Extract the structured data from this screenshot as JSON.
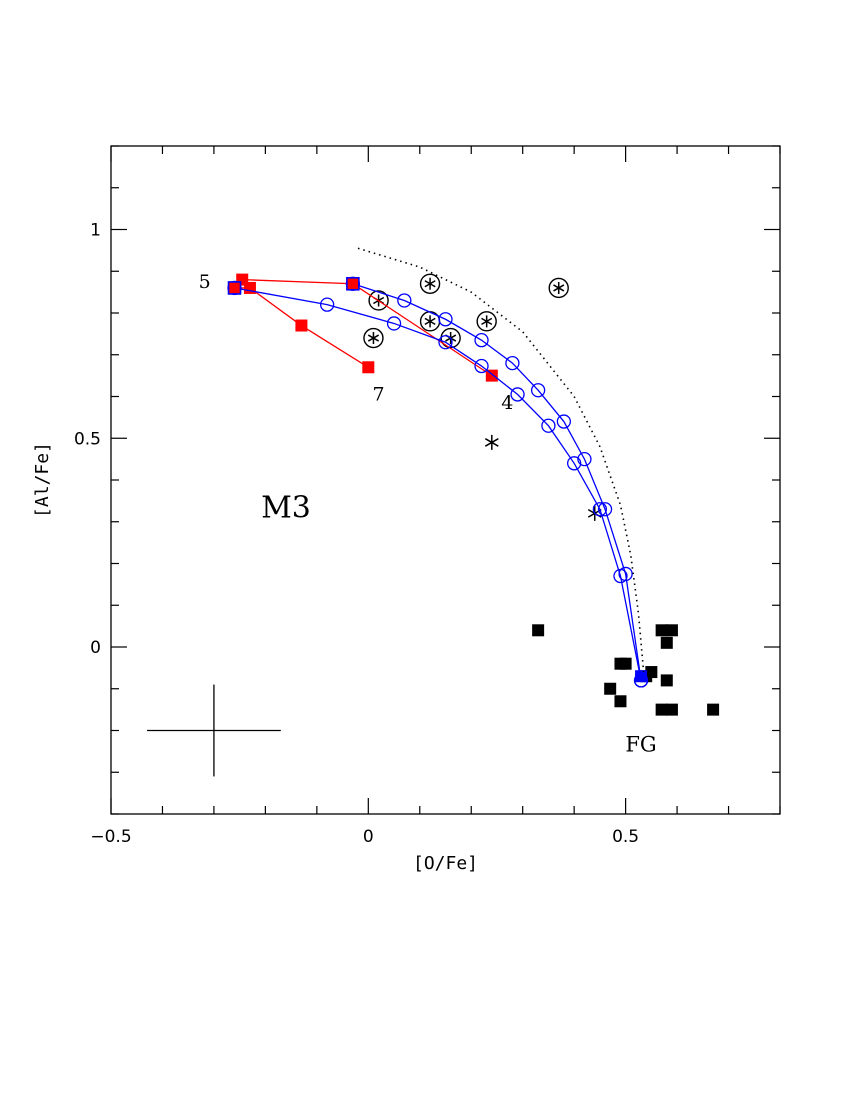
{
  "chart_data": {
    "type": "scatter",
    "xlabel": "[O/Fe]",
    "ylabel": "[Al/Fe]",
    "xlim": [
      -0.5,
      0.8
    ],
    "ylim": [
      -0.4,
      1.2
    ],
    "x_major_ticks": [
      -0.5,
      0,
      0.5
    ],
    "x_tick_labels": [
      "−0.5",
      "0",
      "0.5"
    ],
    "y_major_ticks": [
      0,
      0.5,
      1
    ],
    "y_tick_labels": [
      "0",
      "0.5",
      "1"
    ],
    "grid": false,
    "annotations": [
      {
        "text": "M3",
        "x": -0.16,
        "y": 0.31,
        "color": "#000000",
        "size": "large"
      },
      {
        "text": "FG",
        "x": 0.53,
        "y": -0.25,
        "color": "#000000",
        "size": "medium"
      },
      {
        "text": "5",
        "x": -0.318,
        "y": 0.86,
        "color": "#ff0000",
        "size": "small"
      },
      {
        "text": "7",
        "x": 0.02,
        "y": 0.59,
        "color": "#ff0000",
        "size": "small"
      },
      {
        "text": "4",
        "x": 0.27,
        "y": 0.57,
        "color": "#ff0000",
        "size": "small"
      }
    ],
    "error_bar": {
      "x": -0.3,
      "y": -0.2,
      "xerr": 0.13,
      "yerr": 0.11
    },
    "series": [
      {
        "kind": "points",
        "marker": "filled-square",
        "color": "#000000",
        "points": [
          [
            0.33,
            0.04
          ],
          [
            0.57,
            0.04
          ],
          [
            0.59,
            0.04
          ],
          [
            0.58,
            0.01
          ],
          [
            0.49,
            -0.04
          ],
          [
            0.5,
            -0.04
          ],
          [
            0.55,
            -0.06
          ],
          [
            0.54,
            -0.07
          ],
          [
            0.47,
            -0.1
          ],
          [
            0.58,
            -0.08
          ],
          [
            0.49,
            -0.13
          ],
          [
            0.57,
            -0.15
          ],
          [
            0.59,
            -0.15
          ],
          [
            0.67,
            -0.15
          ]
        ]
      },
      {
        "kind": "points",
        "marker": "star-in-circle",
        "color": "#000000",
        "points": [
          [
            0.12,
            0.87
          ],
          [
            0.37,
            0.86
          ],
          [
            0.02,
            0.83
          ],
          [
            0.12,
            0.78
          ],
          [
            0.23,
            0.78
          ],
          [
            0.01,
            0.74
          ],
          [
            0.16,
            0.74
          ]
        ]
      },
      {
        "kind": "points",
        "marker": "star",
        "color": "#000000",
        "points": [
          [
            0.24,
            0.49
          ],
          [
            0.44,
            0.32
          ]
        ]
      },
      {
        "kind": "polyline",
        "marker": "filled-square",
        "color": "#ff0000",
        "points": [
          [
            -0.26,
            0.86
          ],
          [
            -0.245,
            0.88
          ],
          [
            -0.03,
            0.87
          ],
          [
            0.24,
            0.65
          ]
        ]
      },
      {
        "kind": "polyline",
        "marker": "filled-square",
        "color": "#ff0000",
        "points": [
          [
            -0.26,
            0.86
          ],
          [
            -0.23,
            0.86
          ],
          [
            -0.13,
            0.77
          ],
          [
            0.0,
            0.67
          ]
        ]
      },
      {
        "kind": "polyline",
        "marker": "open-circle",
        "color": "#0000ff",
        "points": [
          [
            -0.26,
            0.86
          ],
          [
            -0.08,
            0.82
          ],
          [
            0.05,
            0.775
          ],
          [
            0.15,
            0.73
          ],
          [
            0.22,
            0.673
          ],
          [
            0.29,
            0.605
          ],
          [
            0.35,
            0.53
          ],
          [
            0.4,
            0.44
          ],
          [
            0.45,
            0.33
          ],
          [
            0.49,
            0.17
          ],
          [
            0.53,
            -0.08
          ]
        ]
      },
      {
        "kind": "polyline",
        "marker": "open-circle",
        "color": "#0000ff",
        "points": [
          [
            -0.03,
            0.87
          ],
          [
            0.07,
            0.83
          ],
          [
            0.15,
            0.785
          ],
          [
            0.22,
            0.735
          ],
          [
            0.28,
            0.68
          ],
          [
            0.33,
            0.615
          ],
          [
            0.38,
            0.54
          ],
          [
            0.42,
            0.45
          ],
          [
            0.46,
            0.33
          ],
          [
            0.5,
            0.175
          ],
          [
            0.53,
            -0.08
          ]
        ]
      },
      {
        "kind": "points",
        "marker": "filled-square-blue-edge",
        "color": "#ff0000",
        "edge_color": "#0000ff",
        "points": [
          [
            -0.26,
            0.86
          ],
          [
            -0.03,
            0.87
          ]
        ]
      },
      {
        "kind": "points",
        "marker": "filled-square",
        "color": "#0000ff",
        "points": [
          [
            0.53,
            -0.07
          ]
        ]
      },
      {
        "kind": "curve",
        "style": "dotted",
        "color": "#000000",
        "points": [
          [
            -0.02,
            0.955
          ],
          [
            0.1,
            0.91
          ],
          [
            0.2,
            0.85
          ],
          [
            0.3,
            0.755
          ],
          [
            0.4,
            0.6
          ],
          [
            0.45,
            0.48
          ],
          [
            0.49,
            0.34
          ],
          [
            0.51,
            0.22
          ],
          [
            0.525,
            0.08
          ],
          [
            0.535,
            -0.06
          ]
        ]
      }
    ]
  }
}
